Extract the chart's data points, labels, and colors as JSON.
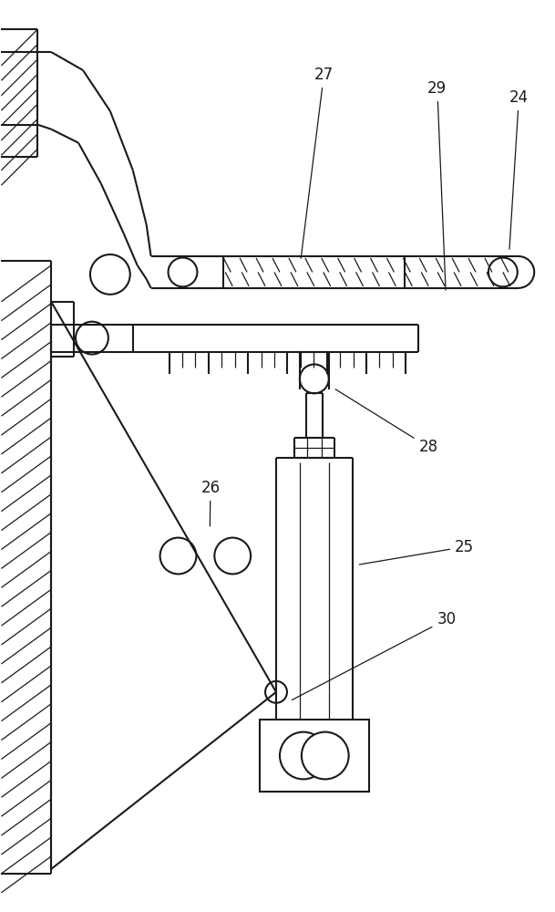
{
  "bg_color": "#ffffff",
  "line_color": "#1a1a1a",
  "lw": 1.5,
  "lw_thin": 0.9,
  "figsize": [
    6.09,
    10.0
  ],
  "dpi": 100
}
